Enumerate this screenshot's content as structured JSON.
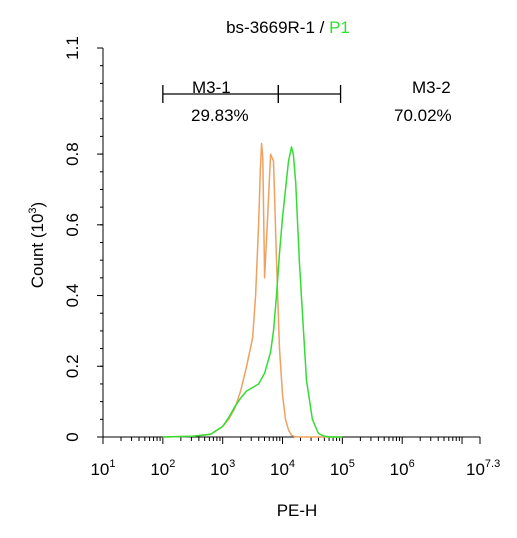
{
  "chart_data": {
    "type": "line",
    "title": {
      "prefix": "bs-3669R-1 / ",
      "highlight": "P1",
      "highlight_color": "#2ee02e"
    },
    "xlabel": "PE-H",
    "ylabel_main": "Count",
    "ylabel_unit_base": "(10",
    "ylabel_unit_exp": "3",
    "ylabel_unit_close": ")",
    "x_scale": "log",
    "xlim": [
      1,
      7.3
    ],
    "ylim": [
      0,
      1.1
    ],
    "x_ticks": [
      {
        "pos": 1,
        "base": "10",
        "exp": "1"
      },
      {
        "pos": 2,
        "base": "10",
        "exp": "2"
      },
      {
        "pos": 3,
        "base": "10",
        "exp": "3"
      },
      {
        "pos": 4,
        "base": "10",
        "exp": "4"
      },
      {
        "pos": 5,
        "base": "10",
        "exp": "5"
      },
      {
        "pos": 6,
        "base": "10",
        "exp": "6"
      },
      {
        "pos": 7.3,
        "base": "10",
        "exp": "7.3"
      }
    ],
    "y_ticks": [
      {
        "value": 0,
        "label": "0"
      },
      {
        "value": 0.2,
        "label": "0.2"
      },
      {
        "value": 0.4,
        "label": "0.4"
      },
      {
        "value": 0.6,
        "label": "0.6"
      },
      {
        "value": 0.8,
        "label": "0.8"
      },
      {
        "value": 1.1,
        "label": "1.1"
      }
    ],
    "gates": [
      {
        "name": "M3-1",
        "percent": "29.83%",
        "range": [
          2.0,
          3.93
        ],
        "y": 0.97
      },
      {
        "name": "M3-2",
        "percent": "70.02%",
        "range": [
          3.93,
          4.97
        ],
        "y": 0.97
      }
    ],
    "series": [
      {
        "color": "#f0a060",
        "x": [
          2.0,
          2.5,
          2.8,
          3.0,
          3.1,
          3.2,
          3.3,
          3.4,
          3.5,
          3.55,
          3.6,
          3.63,
          3.65,
          3.67,
          3.7,
          3.75,
          3.8,
          3.85,
          3.9,
          3.95,
          4.0,
          4.05,
          4.1,
          4.15,
          4.2,
          4.3,
          5.0
        ],
        "y": [
          0,
          0.002,
          0.008,
          0.03,
          0.05,
          0.08,
          0.13,
          0.2,
          0.28,
          0.4,
          0.6,
          0.76,
          0.83,
          0.79,
          0.45,
          0.62,
          0.8,
          0.78,
          0.5,
          0.25,
          0.12,
          0.05,
          0.02,
          0.005,
          0.001,
          0,
          0
        ]
      },
      {
        "color": "#33dd33",
        "x": [
          2.0,
          2.5,
          2.8,
          3.0,
          3.1,
          3.2,
          3.3,
          3.4,
          3.5,
          3.6,
          3.7,
          3.8,
          3.85,
          3.9,
          3.95,
          4.0,
          4.05,
          4.1,
          4.15,
          4.18,
          4.22,
          4.28,
          4.35,
          4.4,
          4.5,
          4.6,
          4.7,
          4.8,
          5.0
        ],
        "y": [
          0,
          0.002,
          0.008,
          0.03,
          0.055,
          0.085,
          0.11,
          0.13,
          0.14,
          0.15,
          0.18,
          0.24,
          0.3,
          0.4,
          0.52,
          0.62,
          0.7,
          0.78,
          0.82,
          0.8,
          0.72,
          0.5,
          0.3,
          0.16,
          0.05,
          0.01,
          0.002,
          0,
          0
        ]
      }
    ],
    "grid": false,
    "legend": "none"
  }
}
